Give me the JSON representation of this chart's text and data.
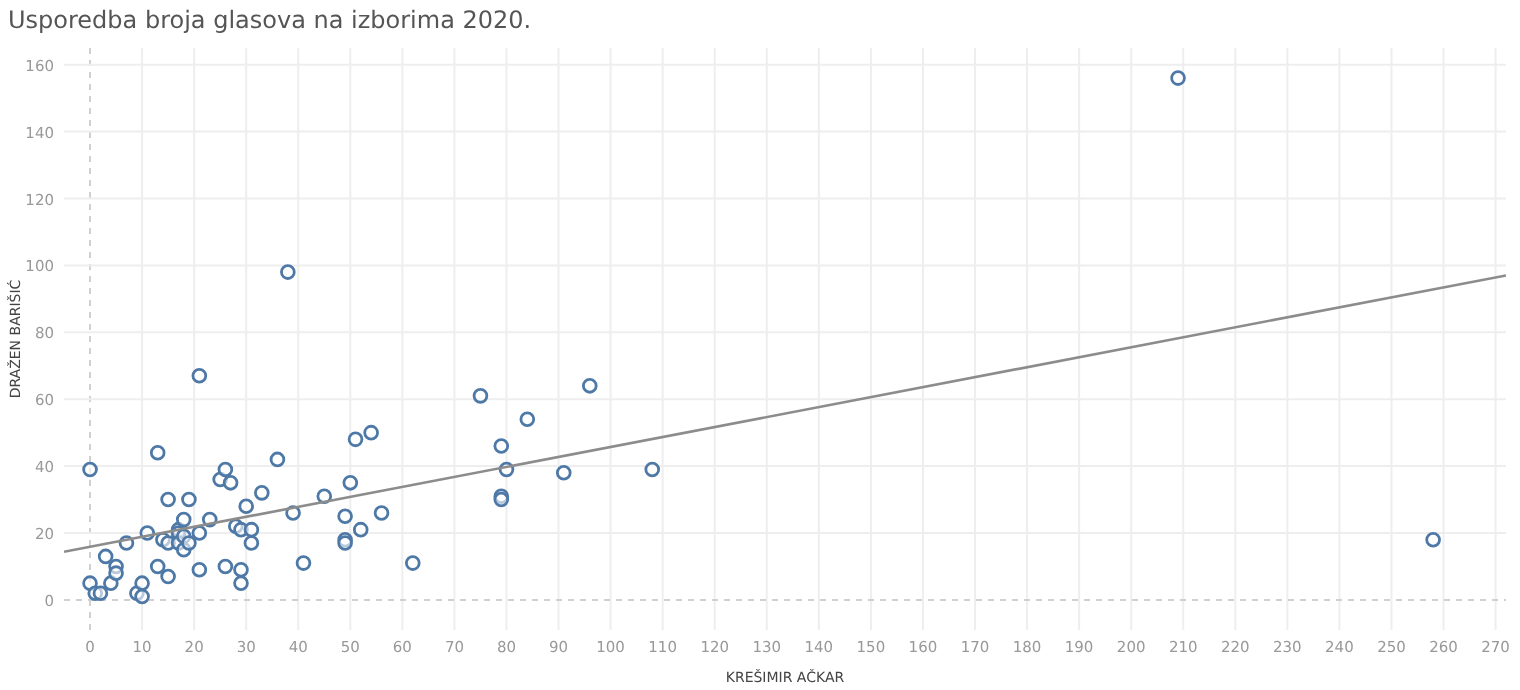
{
  "chart_data": {
    "type": "scatter",
    "title": "Usporedba broja glasova na izborima 2020.",
    "xlabel": "KREŠIMIR AČKAR",
    "ylabel": "DRAŽEN BARIŠIĆ",
    "xlim": [
      -5,
      272
    ],
    "ylim": [
      -9,
      165
    ],
    "xticks": [
      0,
      10,
      20,
      30,
      40,
      50,
      60,
      70,
      80,
      90,
      100,
      110,
      120,
      130,
      140,
      150,
      160,
      170,
      180,
      190,
      200,
      210,
      220,
      230,
      240,
      250,
      260,
      270
    ],
    "yticks": [
      0,
      20,
      40,
      60,
      80,
      100,
      120,
      140,
      160
    ],
    "grid": true,
    "series": [
      {
        "color": "#4e79a7",
        "marker": "circle",
        "x": [
          0,
          0,
          1,
          2,
          3,
          4,
          5,
          5,
          7,
          9,
          10,
          10,
          11,
          13,
          13,
          14,
          15,
          15,
          15,
          17,
          17,
          17,
          18,
          18,
          18,
          19,
          19,
          21,
          21,
          21,
          23,
          25,
          26,
          26,
          27,
          28,
          29,
          29,
          29,
          30,
          31,
          31,
          33,
          36,
          38,
          39,
          41,
          45,
          49,
          49,
          49,
          50,
          51,
          52,
          54,
          56,
          62,
          75,
          79,
          79,
          79,
          80,
          84,
          91,
          96,
          108,
          209,
          258
        ],
        "values": [
          39,
          5,
          2,
          2,
          13,
          5,
          10,
          8,
          17,
          2,
          5,
          1,
          20,
          44,
          10,
          18,
          30,
          17,
          7,
          21,
          20,
          17,
          24,
          19,
          15,
          30,
          17,
          67,
          20,
          9,
          24,
          36,
          39,
          10,
          35,
          22,
          21,
          9,
          5,
          28,
          21,
          17,
          32,
          42,
          98,
          26,
          11,
          31,
          25,
          18,
          17,
          35,
          48,
          21,
          50,
          26,
          11,
          61,
          46,
          31,
          30,
          39,
          54,
          38,
          64,
          39,
          156,
          18
        ]
      },
      {
        "type": "line",
        "color": "#8c8c8c",
        "x": [
          -5,
          272
        ],
        "values": [
          14.4,
          97
        ]
      }
    ]
  }
}
